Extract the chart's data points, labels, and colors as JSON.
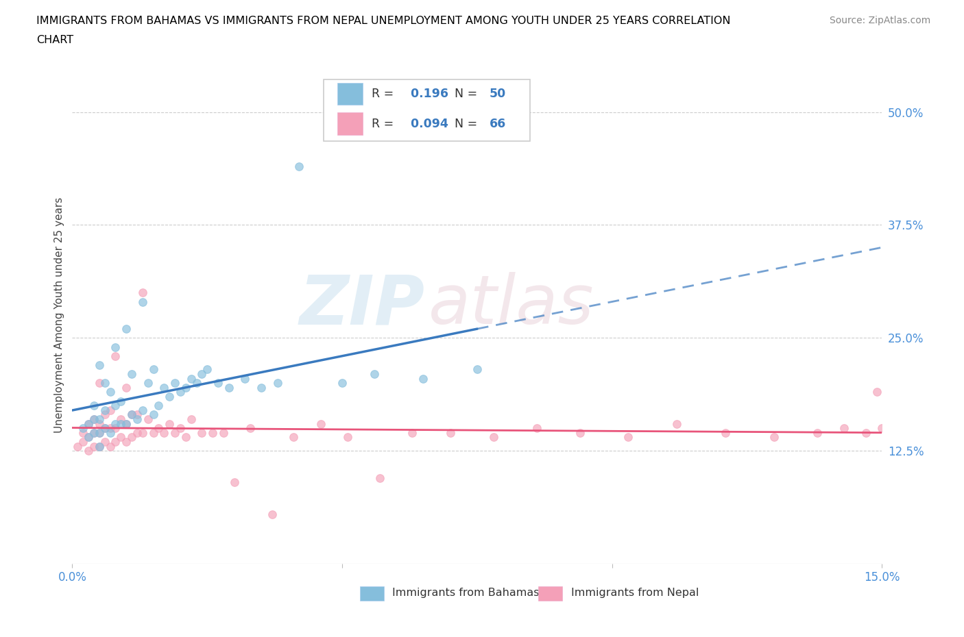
{
  "title_line1": "IMMIGRANTS FROM BAHAMAS VS IMMIGRANTS FROM NEPAL UNEMPLOYMENT AMONG YOUTH UNDER 25 YEARS CORRELATION",
  "title_line2": "CHART",
  "source": "Source: ZipAtlas.com",
  "ylabel": "Unemployment Among Youth under 25 years",
  "xlim": [
    0.0,
    0.15
  ],
  "ylim": [
    0.0,
    0.55
  ],
  "ytick_positions": [
    0.125,
    0.25,
    0.375,
    0.5
  ],
  "ytick_labels": [
    "12.5%",
    "25.0%",
    "37.5%",
    "50.0%"
  ],
  "R_bahamas": 0.196,
  "N_bahamas": 50,
  "R_nepal": 0.094,
  "N_nepal": 66,
  "color_bahamas": "#85bedc",
  "color_nepal": "#f4a0b8",
  "color_bahamas_line": "#3a7abf",
  "color_nepal_line": "#e8547a",
  "watermark_zip": "ZIP",
  "watermark_atlas": "atlas",
  "bahamas_scatter_x": [
    0.002,
    0.003,
    0.003,
    0.004,
    0.004,
    0.004,
    0.005,
    0.005,
    0.005,
    0.005,
    0.006,
    0.006,
    0.006,
    0.007,
    0.007,
    0.008,
    0.008,
    0.008,
    0.009,
    0.009,
    0.01,
    0.01,
    0.011,
    0.011,
    0.012,
    0.013,
    0.013,
    0.014,
    0.015,
    0.015,
    0.016,
    0.017,
    0.018,
    0.019,
    0.02,
    0.021,
    0.022,
    0.023,
    0.024,
    0.025,
    0.027,
    0.029,
    0.032,
    0.035,
    0.038,
    0.042,
    0.05,
    0.056,
    0.065,
    0.075
  ],
  "bahamas_scatter_y": [
    0.15,
    0.155,
    0.14,
    0.145,
    0.16,
    0.175,
    0.13,
    0.145,
    0.16,
    0.22,
    0.15,
    0.17,
    0.2,
    0.145,
    0.19,
    0.155,
    0.175,
    0.24,
    0.155,
    0.18,
    0.155,
    0.26,
    0.165,
    0.21,
    0.16,
    0.17,
    0.29,
    0.2,
    0.165,
    0.215,
    0.175,
    0.195,
    0.185,
    0.2,
    0.19,
    0.195,
    0.205,
    0.2,
    0.21,
    0.215,
    0.2,
    0.195,
    0.205,
    0.195,
    0.2,
    0.44,
    0.2,
    0.21,
    0.205,
    0.215
  ],
  "nepal_scatter_x": [
    0.001,
    0.002,
    0.002,
    0.003,
    0.003,
    0.003,
    0.004,
    0.004,
    0.004,
    0.005,
    0.005,
    0.005,
    0.005,
    0.006,
    0.006,
    0.006,
    0.007,
    0.007,
    0.007,
    0.008,
    0.008,
    0.008,
    0.009,
    0.009,
    0.01,
    0.01,
    0.01,
    0.011,
    0.011,
    0.012,
    0.012,
    0.013,
    0.013,
    0.014,
    0.015,
    0.016,
    0.017,
    0.018,
    0.019,
    0.02,
    0.021,
    0.022,
    0.024,
    0.026,
    0.028,
    0.03,
    0.033,
    0.037,
    0.041,
    0.046,
    0.051,
    0.057,
    0.063,
    0.07,
    0.078,
    0.086,
    0.094,
    0.103,
    0.112,
    0.121,
    0.13,
    0.138,
    0.143,
    0.147,
    0.149,
    0.15
  ],
  "nepal_scatter_y": [
    0.13,
    0.135,
    0.145,
    0.125,
    0.14,
    0.155,
    0.13,
    0.145,
    0.16,
    0.13,
    0.145,
    0.155,
    0.2,
    0.135,
    0.15,
    0.165,
    0.13,
    0.15,
    0.17,
    0.135,
    0.15,
    0.23,
    0.14,
    0.16,
    0.135,
    0.155,
    0.195,
    0.14,
    0.165,
    0.145,
    0.165,
    0.145,
    0.3,
    0.16,
    0.145,
    0.15,
    0.145,
    0.155,
    0.145,
    0.15,
    0.14,
    0.16,
    0.145,
    0.145,
    0.145,
    0.09,
    0.15,
    0.055,
    0.14,
    0.155,
    0.14,
    0.095,
    0.145,
    0.145,
    0.14,
    0.15,
    0.145,
    0.14,
    0.155,
    0.145,
    0.14,
    0.145,
    0.15,
    0.145,
    0.19,
    0.15
  ]
}
